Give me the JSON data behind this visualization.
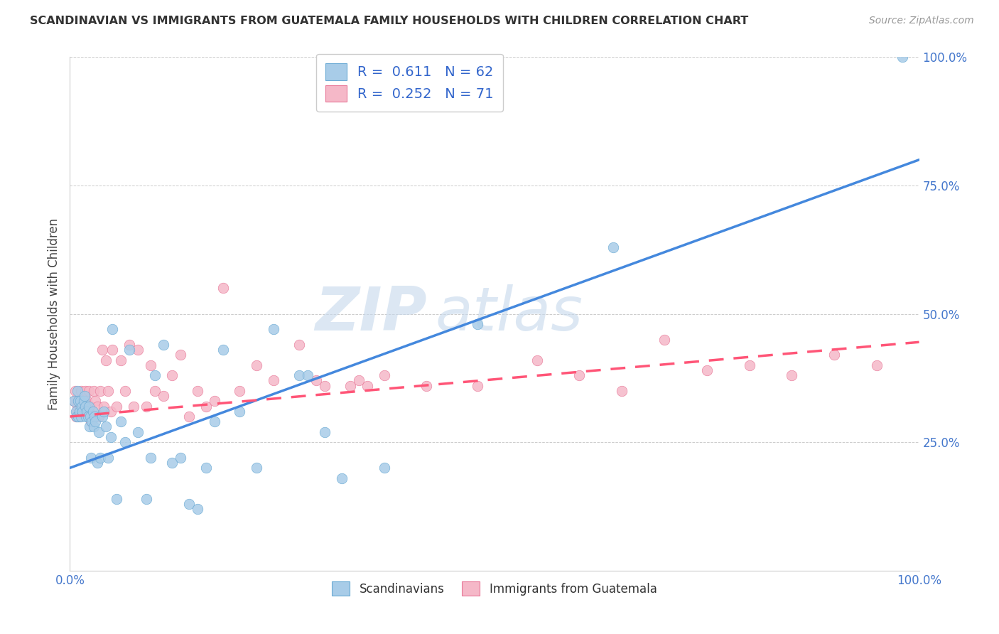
{
  "title": "SCANDINAVIAN VS IMMIGRANTS FROM GUATEMALA FAMILY HOUSEHOLDS WITH CHILDREN CORRELATION CHART",
  "source": "Source: ZipAtlas.com",
  "ylabel": "Family Households with Children",
  "xlim": [
    0.0,
    1.0
  ],
  "ylim": [
    0.0,
    1.0
  ],
  "watermark_zip": "ZIP",
  "watermark_atlas": "atlas",
  "scandinavian_color": "#A8CCE8",
  "scandinavian_edge": "#6AAAD4",
  "guatemala_color": "#F5B8C8",
  "guatemala_edge": "#E87898",
  "trendline_blue": "#4488DD",
  "trendline_pink": "#FF5577",
  "R_scan": 0.611,
  "N_scan": 62,
  "R_guat": 0.252,
  "N_guat": 71,
  "legend_label_scan": "Scandinavians",
  "legend_label_guat": "Immigrants from Guatemala",
  "blue_intercept": 0.2,
  "blue_slope": 0.6,
  "pink_intercept": 0.3,
  "pink_slope": 0.145,
  "scandinavian_x": [
    0.005,
    0.007,
    0.008,
    0.009,
    0.01,
    0.01,
    0.011,
    0.012,
    0.013,
    0.014,
    0.015,
    0.016,
    0.017,
    0.018,
    0.019,
    0.02,
    0.021,
    0.022,
    0.023,
    0.024,
    0.025,
    0.026,
    0.027,
    0.028,
    0.029,
    0.03,
    0.032,
    0.034,
    0.036,
    0.038,
    0.04,
    0.042,
    0.045,
    0.048,
    0.05,
    0.055,
    0.06,
    0.065,
    0.07,
    0.08,
    0.09,
    0.095,
    0.1,
    0.11,
    0.12,
    0.13,
    0.14,
    0.15,
    0.16,
    0.17,
    0.18,
    0.2,
    0.22,
    0.24,
    0.27,
    0.28,
    0.3,
    0.32,
    0.37,
    0.48,
    0.64,
    0.98
  ],
  "scandinavian_y": [
    0.33,
    0.31,
    0.3,
    0.35,
    0.33,
    0.3,
    0.31,
    0.33,
    0.3,
    0.32,
    0.31,
    0.33,
    0.34,
    0.32,
    0.3,
    0.31,
    0.3,
    0.32,
    0.28,
    0.3,
    0.22,
    0.29,
    0.31,
    0.28,
    0.3,
    0.29,
    0.21,
    0.27,
    0.22,
    0.3,
    0.31,
    0.28,
    0.22,
    0.26,
    0.47,
    0.14,
    0.29,
    0.25,
    0.43,
    0.27,
    0.14,
    0.22,
    0.38,
    0.44,
    0.21,
    0.22,
    0.13,
    0.12,
    0.2,
    0.29,
    0.43,
    0.31,
    0.2,
    0.47,
    0.38,
    0.38,
    0.27,
    0.18,
    0.2,
    0.48,
    0.63,
    1.0
  ],
  "guatemala_x": [
    0.005,
    0.006,
    0.007,
    0.008,
    0.009,
    0.01,
    0.011,
    0.012,
    0.013,
    0.014,
    0.015,
    0.016,
    0.017,
    0.018,
    0.019,
    0.02,
    0.021,
    0.022,
    0.023,
    0.024,
    0.025,
    0.026,
    0.028,
    0.03,
    0.032,
    0.034,
    0.036,
    0.038,
    0.04,
    0.042,
    0.045,
    0.048,
    0.05,
    0.055,
    0.06,
    0.065,
    0.07,
    0.075,
    0.08,
    0.09,
    0.095,
    0.1,
    0.11,
    0.12,
    0.13,
    0.14,
    0.15,
    0.16,
    0.17,
    0.18,
    0.2,
    0.22,
    0.24,
    0.27,
    0.29,
    0.3,
    0.33,
    0.34,
    0.35,
    0.37,
    0.42,
    0.48,
    0.55,
    0.6,
    0.65,
    0.7,
    0.75,
    0.8,
    0.85,
    0.9,
    0.95
  ],
  "guatemala_y": [
    0.33,
    0.35,
    0.3,
    0.31,
    0.32,
    0.33,
    0.3,
    0.32,
    0.35,
    0.31,
    0.33,
    0.32,
    0.34,
    0.35,
    0.32,
    0.33,
    0.31,
    0.35,
    0.3,
    0.32,
    0.29,
    0.31,
    0.35,
    0.33,
    0.32,
    0.3,
    0.35,
    0.43,
    0.32,
    0.41,
    0.35,
    0.31,
    0.43,
    0.32,
    0.41,
    0.35,
    0.44,
    0.32,
    0.43,
    0.32,
    0.4,
    0.35,
    0.34,
    0.38,
    0.42,
    0.3,
    0.35,
    0.32,
    0.33,
    0.55,
    0.35,
    0.4,
    0.37,
    0.44,
    0.37,
    0.36,
    0.36,
    0.37,
    0.36,
    0.38,
    0.36,
    0.36,
    0.41,
    0.38,
    0.35,
    0.45,
    0.39,
    0.4,
    0.38,
    0.42,
    0.4
  ]
}
